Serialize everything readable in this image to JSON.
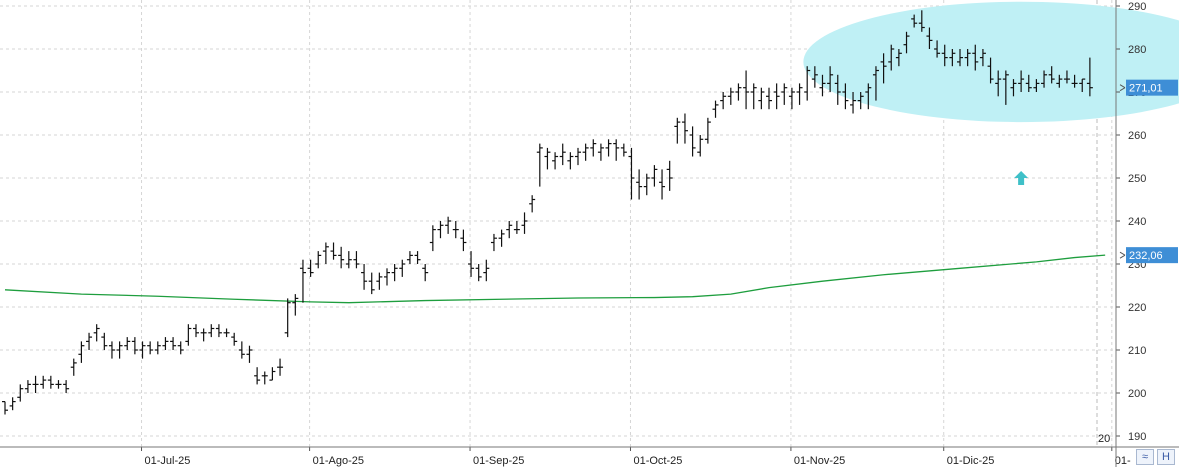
{
  "chart_data": {
    "type": "ohlc",
    "title": "",
    "xlabel": "",
    "ylabel": "",
    "ylim": [
      186,
      292
    ],
    "y_ticks": [
      190,
      200,
      210,
      220,
      230,
      240,
      250,
      260,
      270,
      280,
      290
    ],
    "x_ticks": [
      "01-Jul-25",
      "01-Ago-25",
      "01-Sep-25",
      "01-Oct-25",
      "01-Nov-25",
      "01-Dic-25",
      "01-"
    ],
    "x_tick_index": [
      18,
      40,
      61,
      82,
      103,
      123,
      145
    ],
    "grid": true,
    "price_labels": [
      {
        "text": "271,01",
        "value": 271.01,
        "color": "#3e8ed6"
      },
      {
        "text": "232,06",
        "value": 232.06,
        "color": "#3e8ed6"
      }
    ],
    "year_label": "20",
    "moving_average": {
      "color": "#1e9e3e",
      "points": [
        [
          0,
          224
        ],
        [
          10,
          223
        ],
        [
          20,
          222.5
        ],
        [
          30,
          221.8
        ],
        [
          40,
          221.2
        ],
        [
          45,
          221
        ],
        [
          55,
          221.5
        ],
        [
          65,
          221.8
        ],
        [
          75,
          222.1
        ],
        [
          85,
          222.2
        ],
        [
          90,
          222.4
        ],
        [
          95,
          223
        ],
        [
          100,
          224.5
        ],
        [
          107,
          226
        ],
        [
          115,
          227.5
        ],
        [
          125,
          229
        ],
        [
          135,
          230.5
        ],
        [
          140,
          231.5
        ],
        [
          144,
          232.06
        ]
      ]
    },
    "ellipse": {
      "cx": 133,
      "cy": 277,
      "rx": 28.5,
      "ry": 14,
      "color": "#bff0f5"
    },
    "arrow": {
      "x": 133,
      "y": 250,
      "color": "#3fc0c8"
    },
    "bars": [
      [
        198,
        198,
        195,
        196
      ],
      [
        197,
        199,
        196,
        198
      ],
      [
        199,
        202,
        198,
        201
      ],
      [
        201,
        203,
        200,
        202
      ],
      [
        202,
        204,
        200,
        202
      ],
      [
        202,
        204,
        201,
        203
      ],
      [
        203,
        204,
        201,
        202
      ],
      [
        202,
        203,
        201,
        202
      ],
      [
        202,
        203,
        200,
        201
      ],
      [
        206,
        208,
        204,
        207
      ],
      [
        209,
        212,
        207,
        211
      ],
      [
        212,
        214,
        210,
        213
      ],
      [
        214,
        216,
        212,
        215
      ],
      [
        213,
        214,
        210,
        211
      ],
      [
        211,
        212,
        208,
        210
      ],
      [
        210,
        212,
        208,
        211
      ],
      [
        211,
        213,
        210,
        212
      ],
      [
        212,
        213,
        209,
        210
      ],
      [
        210,
        212,
        208,
        211
      ],
      [
        211,
        212,
        209,
        210
      ],
      [
        210,
        212,
        209,
        211
      ],
      [
        211,
        213,
        210,
        212
      ],
      [
        212,
        213,
        210,
        211
      ],
      [
        211,
        212,
        209,
        210
      ],
      [
        212,
        216,
        211,
        215
      ],
      [
        215,
        216,
        213,
        214
      ],
      [
        214,
        215,
        212,
        214
      ],
      [
        214,
        216,
        213,
        215
      ],
      [
        215,
        216,
        213,
        214
      ],
      [
        214,
        215,
        213,
        214
      ],
      [
        213,
        214,
        211,
        212
      ],
      [
        210,
        212,
        208,
        209
      ],
      [
        209,
        211,
        207,
        210
      ],
      [
        204,
        206,
        202,
        203
      ],
      [
        204,
        205,
        202,
        204
      ],
      [
        203,
        206,
        203,
        205
      ],
      [
        206,
        208,
        204,
        206
      ],
      [
        214,
        222,
        213,
        221
      ],
      [
        221,
        223,
        218,
        222
      ],
      [
        229,
        231,
        221,
        228
      ],
      [
        229,
        231,
        227,
        228
      ],
      [
        230,
        233,
        229,
        232
      ],
      [
        233,
        235,
        230,
        234
      ],
      [
        233,
        235,
        231,
        232
      ],
      [
        232,
        234,
        229,
        231
      ],
      [
        230,
        233,
        229,
        231
      ],
      [
        231,
        233,
        229,
        230
      ],
      [
        228,
        230,
        224,
        226
      ],
      [
        226,
        228,
        223,
        224
      ],
      [
        226,
        228,
        224,
        227
      ],
      [
        227,
        229,
        225,
        228
      ],
      [
        228,
        230,
        226,
        229
      ],
      [
        229,
        231,
        227,
        230
      ],
      [
        231,
        233,
        230,
        232
      ],
      [
        232,
        233,
        230,
        231
      ],
      [
        229,
        230,
        226,
        228
      ],
      [
        235,
        239,
        233,
        238
      ],
      [
        238,
        240,
        236,
        239
      ],
      [
        239,
        241,
        237,
        240
      ],
      [
        238,
        240,
        236,
        238
      ],
      [
        236,
        238,
        233,
        235
      ],
      [
        230,
        233,
        227,
        229
      ],
      [
        229,
        230,
        226,
        227
      ],
      [
        228,
        231,
        226,
        229
      ],
      [
        235,
        237,
        233,
        236
      ],
      [
        236,
        238,
        234,
        237
      ],
      [
        238,
        240,
        236,
        239
      ],
      [
        238,
        240,
        237,
        238
      ],
      [
        239,
        242,
        237,
        240
      ],
      [
        244,
        246,
        242,
        245
      ],
      [
        256,
        258,
        248,
        257
      ],
      [
        255,
        257,
        252,
        256
      ],
      [
        254,
        256,
        252,
        255
      ],
      [
        255,
        258,
        253,
        256
      ],
      [
        254,
        256,
        252,
        255
      ],
      [
        255,
        257,
        253,
        256
      ],
      [
        256,
        258,
        254,
        257
      ],
      [
        257,
        259,
        255,
        258
      ],
      [
        256,
        258,
        254,
        257
      ],
      [
        257,
        259,
        255,
        258
      ],
      [
        258,
        259,
        254,
        257
      ],
      [
        257,
        258,
        255,
        256
      ],
      [
        255,
        257,
        245,
        250
      ],
      [
        249,
        252,
        245,
        248
      ],
      [
        248,
        251,
        246,
        250
      ],
      [
        250,
        253,
        248,
        252
      ],
      [
        249,
        252,
        245,
        248
      ],
      [
        252,
        254,
        247,
        250
      ],
      [
        262,
        264,
        258,
        263
      ],
      [
        263,
        265,
        258,
        261
      ],
      [
        260,
        262,
        255,
        257
      ],
      [
        256,
        260,
        255,
        259
      ],
      [
        259,
        264,
        258,
        263
      ],
      [
        266,
        268,
        264,
        267
      ],
      [
        268,
        270,
        266,
        269
      ],
      [
        269,
        271,
        267,
        270
      ],
      [
        270,
        272,
        268,
        271
      ],
      [
        271,
        275,
        266,
        270
      ],
      [
        270,
        272,
        266,
        271
      ],
      [
        268,
        271,
        266,
        270
      ],
      [
        269,
        271,
        266,
        268
      ],
      [
        270,
        272,
        266,
        269
      ],
      [
        270,
        272,
        267,
        271
      ],
      [
        269,
        271,
        266,
        270
      ],
      [
        270,
        272,
        267,
        271
      ],
      [
        270,
        276,
        268,
        275
      ],
      [
        273,
        276,
        271,
        274
      ],
      [
        271,
        274,
        269,
        272
      ],
      [
        272,
        276,
        270,
        274
      ],
      [
        272,
        274,
        267,
        270
      ],
      [
        270,
        272,
        266,
        268
      ],
      [
        267,
        270,
        265,
        268
      ],
      [
        268,
        270,
        266,
        269
      ],
      [
        270,
        272,
        266,
        271
      ],
      [
        274,
        276,
        268,
        275
      ],
      [
        277,
        279,
        272,
        276
      ],
      [
        277,
        281,
        275,
        280
      ],
      [
        278,
        280,
        276,
        279
      ],
      [
        281,
        284,
        279,
        283
      ],
      [
        287,
        288,
        285,
        286
      ],
      [
        286,
        289,
        284,
        285
      ],
      [
        283,
        285,
        280,
        282
      ],
      [
        280,
        282,
        278,
        279
      ],
      [
        279,
        281,
        276,
        278
      ],
      [
        278,
        280,
        276,
        279
      ],
      [
        277,
        280,
        276,
        278
      ],
      [
        278,
        280,
        276,
        279
      ],
      [
        279,
        281,
        275,
        277
      ],
      [
        278,
        280,
        276,
        279
      ],
      [
        276,
        278,
        272,
        273
      ],
      [
        272,
        275,
        269,
        273
      ],
      [
        273,
        275,
        267,
        274
      ],
      [
        271,
        273,
        269,
        272
      ],
      [
        272,
        275,
        270,
        273
      ],
      [
        272,
        274,
        270,
        271
      ],
      [
        271,
        273,
        270,
        272
      ],
      [
        272,
        275,
        271,
        274
      ],
      [
        274,
        276,
        272,
        273
      ],
      [
        272,
        274,
        271,
        273
      ],
      [
        273,
        275,
        272,
        273
      ],
      [
        272,
        274,
        271,
        272
      ],
      [
        272,
        273,
        270,
        273
      ],
      [
        272,
        278,
        269,
        271
      ]
    ]
  },
  "ui": {
    "corner_btn_1": "≈",
    "corner_btn_2": "H"
  }
}
